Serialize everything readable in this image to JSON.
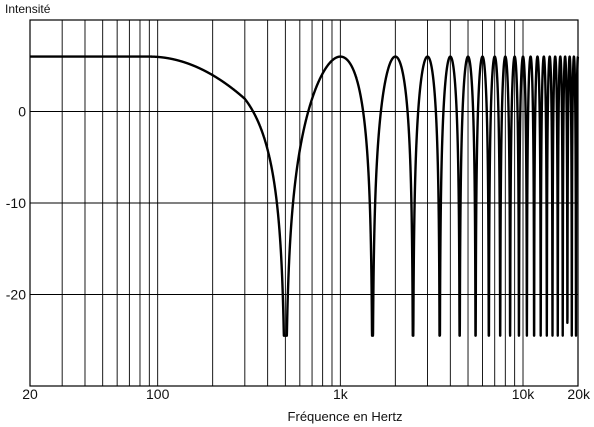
{
  "chart_data": {
    "type": "line",
    "title": "",
    "xlabel": "Fréquence en Hertz",
    "ylabel": "Intensité",
    "x_scale": "log",
    "xlim": [
      20,
      20000
    ],
    "ylim": [
      -30,
      10
    ],
    "grid": true,
    "x_ticks": [
      {
        "value": 20,
        "label": "20"
      },
      {
        "value": 100,
        "label": "100"
      },
      {
        "value": 1000,
        "label": "1k"
      },
      {
        "value": 10000,
        "label": "10k"
      },
      {
        "value": 20000,
        "label": "20k"
      }
    ],
    "y_ticks": [
      {
        "value": 0,
        "label": "0"
      },
      {
        "value": -10,
        "label": "-10"
      },
      {
        "value": -20,
        "label": "-20"
      }
    ],
    "series": [
      {
        "name": "",
        "color": "#000000",
        "level_max_db": 6,
        "level_min_db": -24.5,
        "passband_hf_corner_hz": 300,
        "notch_frequencies_hz": [
          500,
          1500,
          2500,
          3500,
          4500,
          5500,
          6500,
          7500,
          8500,
          9500,
          10500,
          11500,
          12500,
          13500,
          14500,
          15500,
          16500,
          17500,
          18500,
          19500
        ],
        "peak_frequencies_hz": [
          1000,
          2000,
          3000,
          4000,
          5000,
          6000,
          7000,
          8000,
          9000,
          10000,
          11000
        ]
      }
    ]
  }
}
